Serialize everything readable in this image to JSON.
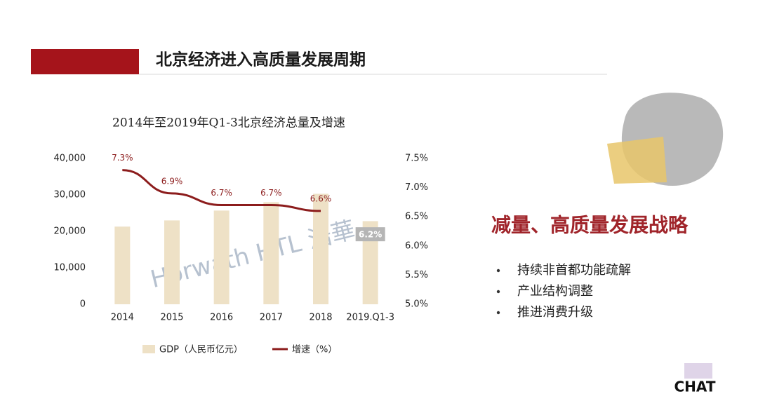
{
  "header": {
    "title": "北京经济进入高质量发展周期"
  },
  "chart_data": {
    "type": "bar-line",
    "title": "2014年至2019年Q1-3北京经济总量及增速",
    "categories": [
      "2014",
      "2015",
      "2016",
      "2017",
      "2018",
      "2019.Q1-3"
    ],
    "series": [
      {
        "name": "GDP（人民币亿元）",
        "type": "bar",
        "color": "#eee1c6",
        "values": [
          21300,
          23000,
          25700,
          28000,
          30300,
          22800
        ]
      },
      {
        "name": "增速（%）",
        "type": "line",
        "axis": "y2",
        "color": "#8c1c1c",
        "values": [
          7.3,
          6.9,
          6.7,
          6.7,
          6.6,
          null
        ],
        "value_labels": [
          "7.3%",
          "6.9%",
          "6.7%",
          "6.7%",
          "6.6%",
          null
        ]
      }
    ],
    "annotations": [
      {
        "x": "2019.Q1-3",
        "y": 6.2,
        "label": "6.2%"
      }
    ],
    "ylim": [
      0,
      40000
    ],
    "yticks": [
      0,
      {
        "value": 10000,
        "label": "10,000"
      },
      {
        "value": 20000,
        "label": "20,000"
      },
      {
        "value": 30000,
        "label": "30,000"
      },
      {
        "value": 40000,
        "label": "40,000"
      }
    ],
    "y2lim": [
      5.0,
      7.5
    ],
    "y2ticks": [
      {
        "value": 5.0,
        "label": "5.0%"
      },
      {
        "value": 5.5,
        "label": "5.5%"
      },
      {
        "value": 6.0,
        "label": "6.0%"
      },
      {
        "value": 6.5,
        "label": "6.5%"
      },
      {
        "value": 7.0,
        "label": "7.0%"
      },
      {
        "value": 7.5,
        "label": "7.5%"
      }
    ],
    "grid": false,
    "legend": "bottom"
  },
  "strategy": "减量、高质量发展战略",
  "bullets": [
    "持续非首都功能疏解",
    "产业结构调整",
    "推进消费升级"
  ],
  "watermark": "Horwath HTL 浩華",
  "logo": "CHAT"
}
